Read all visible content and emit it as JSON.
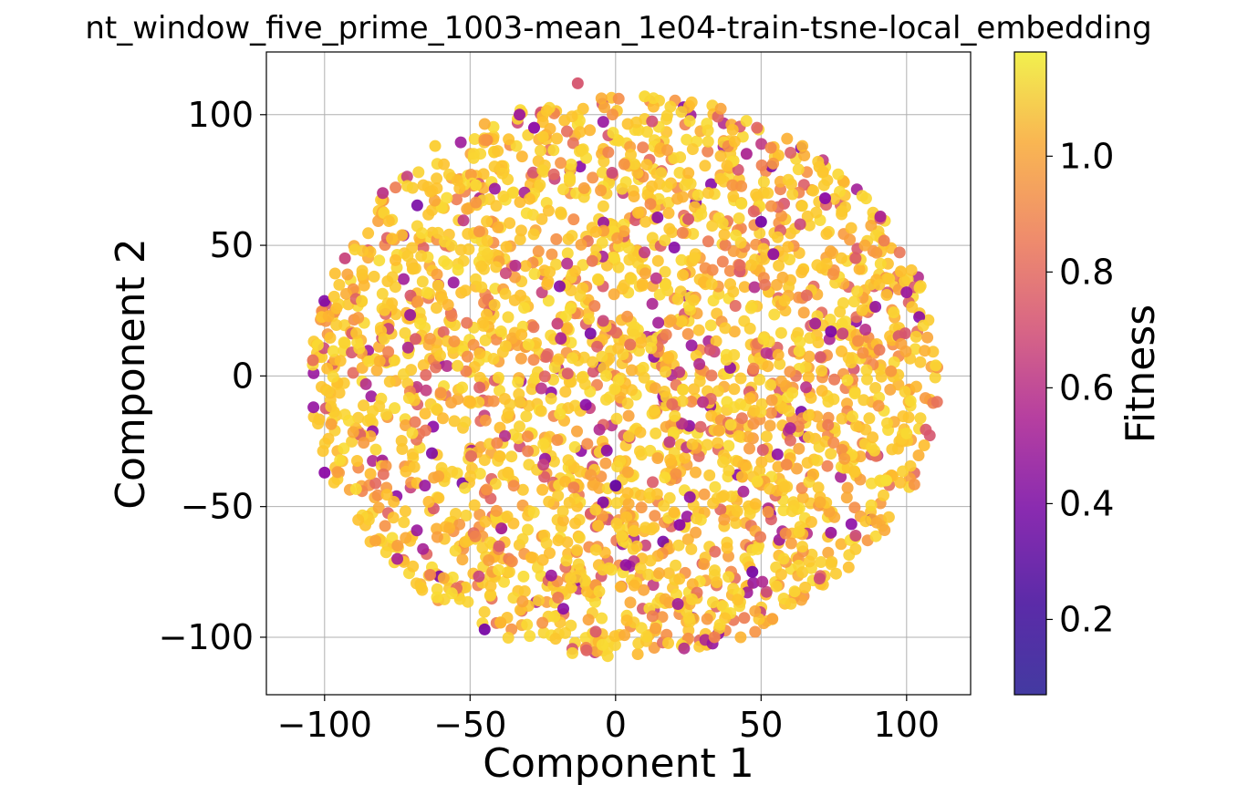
{
  "chart_data": {
    "type": "scatter",
    "title": "nt_window_five_prime_1003-mean_1e04-train-tsne-local_embedding",
    "xlabel": "Component 1",
    "ylabel": "Component 2",
    "xlim": [
      -120,
      122
    ],
    "ylim": [
      -122,
      124
    ],
    "xticks": [
      -100,
      -50,
      0,
      50,
      100
    ],
    "xtick_labels": [
      "−100",
      "−50",
      "0",
      "50",
      "100"
    ],
    "yticks": [
      -100,
      -50,
      0,
      50,
      100
    ],
    "ytick_labels": [
      "−100",
      "−50",
      "0",
      "50",
      "100"
    ],
    "grid": true,
    "colormap": "plasma",
    "colorbar": {
      "label": "Fitness",
      "range": [
        0.07,
        1.18
      ],
      "ticks": [
        0.2,
        0.4,
        0.6,
        0.8,
        1.0
      ],
      "tick_labels": [
        "0.2",
        "0.4",
        "0.6",
        "0.8",
        "1.0"
      ]
    },
    "cloud": {
      "center": [
        3,
        0
      ],
      "radius": 108,
      "n_points": 2600
    },
    "points": [
      {
        "x": -75,
        "y": -70,
        "c": 0.45
      },
      {
        "x": -62,
        "y": 88,
        "c": 0.98
      },
      {
        "x": -50,
        "y": -10,
        "c": 0.9
      },
      {
        "x": -45,
        "y": -97,
        "c": 0.3
      },
      {
        "x": -37,
        "y": -37,
        "c": 0.95
      },
      {
        "x": -33,
        "y": 100,
        "c": 0.4
      },
      {
        "x": -28,
        "y": 95,
        "c": 0.35
      },
      {
        "x": -13,
        "y": 112,
        "c": 0.6
      },
      {
        "x": -8,
        "y": 44,
        "c": 0.72
      },
      {
        "x": 0,
        "y": -42,
        "c": 0.25
      },
      {
        "x": 5,
        "y": 12,
        "c": 0.7
      },
      {
        "x": 10,
        "y": 107,
        "c": 1.02
      },
      {
        "x": 22,
        "y": -57,
        "c": 0.35
      },
      {
        "x": 34,
        "y": -100,
        "c": 0.75
      },
      {
        "x": 45,
        "y": 85,
        "c": 0.45
      },
      {
        "x": 47,
        "y": -75,
        "c": 0.3
      },
      {
        "x": 50,
        "y": 59,
        "c": 0.3
      },
      {
        "x": 70,
        "y": 80,
        "c": 0.95
      },
      {
        "x": 72,
        "y": 68,
        "c": 0.35
      },
      {
        "x": 74,
        "y": 17,
        "c": 0.32
      },
      {
        "x": 74,
        "y": -60,
        "c": 0.4
      },
      {
        "x": 91,
        "y": 61,
        "c": 0.45
      },
      {
        "x": 93,
        "y": -40,
        "c": 1.05
      },
      {
        "x": 100,
        "y": -22,
        "c": 1.02
      },
      {
        "x": 110,
        "y": 4,
        "c": 1.0
      },
      {
        "x": -100,
        "y": -37,
        "c": 0.35
      },
      {
        "x": -104,
        "y": 6,
        "c": 0.7
      },
      {
        "x": -93,
        "y": 45,
        "c": 0.55
      },
      {
        "x": -80,
        "y": 70,
        "c": 0.5
      },
      {
        "x": 98,
        "y": 40,
        "c": 0.92
      },
      {
        "x": 100,
        "y": 32,
        "c": 0.4
      },
      {
        "x": -10,
        "y": -105,
        "c": 0.65
      },
      {
        "x": 25,
        "y": 60,
        "c": 0.6
      },
      {
        "x": -20,
        "y": 20,
        "c": 0.55
      },
      {
        "x": 30,
        "y": -10,
        "c": 0.5
      },
      {
        "x": 60,
        "y": -20,
        "c": 0.45
      }
    ]
  }
}
